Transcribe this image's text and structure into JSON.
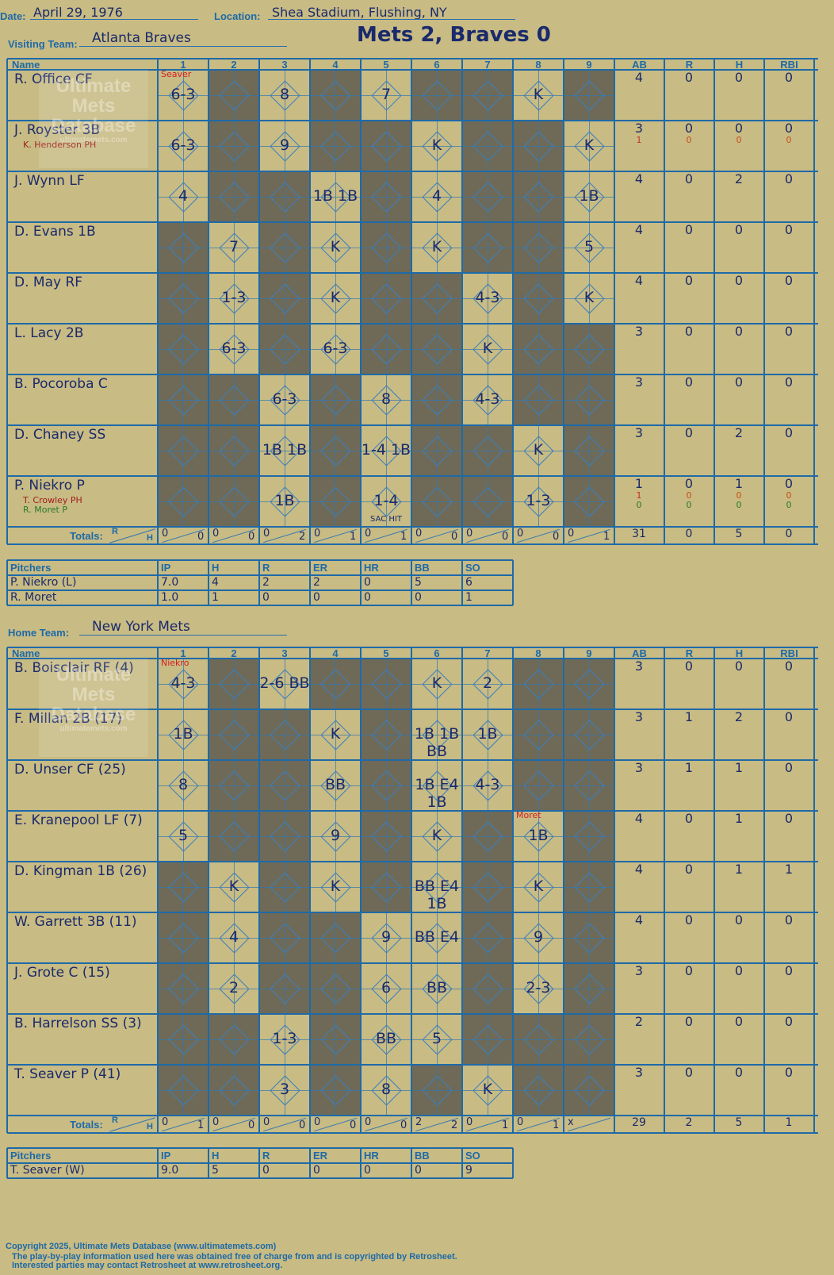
{
  "header": {
    "date_label": "Date:",
    "date": "April 29, 1976",
    "location_label": "Location:",
    "location": "Shea Stadium, Flushing, NY",
    "visiting_label": "Visiting Team:",
    "visiting_team": "Atlanta Braves",
    "title": "Mets 2, Braves 0",
    "home_label": "Home Team:",
    "home_team": "New York Mets"
  },
  "columns": {
    "name": "Name",
    "innings": [
      "1",
      "2",
      "3",
      "4",
      "5",
      "6",
      "7",
      "8",
      "9"
    ],
    "stats": [
      "AB",
      "R",
      "H",
      "RBI"
    ],
    "totals": "Totals:",
    "r": "R",
    "h": "H"
  },
  "watermark": {
    "line1": "Ultimate",
    "line2": "Mets",
    "line3": "Database",
    "line4": "ultimatemets.com"
  },
  "visitors": {
    "pitcher_note": "Seaver",
    "players": [
      {
        "name": "R. Office CF",
        "subs": [],
        "ab": [
          "4"
        ],
        "r": [
          "0"
        ],
        "h": [
          "0"
        ],
        "rbi": [
          "0"
        ],
        "plays": {
          "1": "6-3",
          "3": "8",
          "5": "7",
          "8": "K"
        }
      },
      {
        "name": "J. Royster 3B",
        "subs": [
          {
            "name": "K. Henderson PH",
            "color": "darkred"
          }
        ],
        "ab": [
          "3",
          "1"
        ],
        "r": [
          "0",
          "0"
        ],
        "h": [
          "0",
          "0"
        ],
        "rbi": [
          "0",
          "0"
        ],
        "plays": {
          "1": "6-3",
          "3": "9",
          "6": "K",
          "9": "K"
        }
      },
      {
        "name": "J. Wynn LF",
        "subs": [],
        "ab": [
          "4"
        ],
        "r": [
          "0"
        ],
        "h": [
          "2"
        ],
        "rbi": [
          "0"
        ],
        "plays": {
          "1": "4",
          "4": "1B 1B",
          "6": "4",
          "9": "1B"
        }
      },
      {
        "name": "D. Evans 1B",
        "subs": [],
        "ab": [
          "4"
        ],
        "r": [
          "0"
        ],
        "h": [
          "0"
        ],
        "rbi": [
          "0"
        ],
        "plays": {
          "2": "7",
          "4": "K",
          "6": "K",
          "9": "5"
        }
      },
      {
        "name": "D. May RF",
        "subs": [],
        "ab": [
          "4"
        ],
        "r": [
          "0"
        ],
        "h": [
          "0"
        ],
        "rbi": [
          "0"
        ],
        "plays": {
          "2": "1-3",
          "4": "K",
          "7": "4-3",
          "9": "K"
        }
      },
      {
        "name": "L. Lacy 2B",
        "subs": [],
        "ab": [
          "3"
        ],
        "r": [
          "0"
        ],
        "h": [
          "0"
        ],
        "rbi": [
          "0"
        ],
        "plays": {
          "2": "6-3",
          "4": "6-3",
          "7": "K"
        }
      },
      {
        "name": "B. Pocoroba C",
        "subs": [],
        "ab": [
          "3"
        ],
        "r": [
          "0"
        ],
        "h": [
          "0"
        ],
        "rbi": [
          "0"
        ],
        "plays": {
          "3": "6-3",
          "5": "8",
          "7": "4-3"
        }
      },
      {
        "name": "D. Chaney SS",
        "subs": [],
        "ab": [
          "3"
        ],
        "r": [
          "0"
        ],
        "h": [
          "2"
        ],
        "rbi": [
          "0"
        ],
        "plays": {
          "3": "1B 1B",
          "5": "1-4 1B",
          "8": "K"
        }
      },
      {
        "name": "P. Niekro P",
        "subs": [
          {
            "name": "T. Crowley PH",
            "color": "darkred"
          },
          {
            "name": "R. Moret P",
            "color": "green"
          }
        ],
        "ab": [
          "1",
          "1",
          "0"
        ],
        "r": [
          "0",
          "0",
          "0"
        ],
        "h": [
          "1",
          "0",
          "0"
        ],
        "rbi": [
          "0",
          "0",
          "0"
        ],
        "plays": {
          "3": "1B",
          "5": "1-4",
          "8": "1-3"
        },
        "notes": {
          "5": "SAC HIT"
        }
      }
    ],
    "totals": {
      "innings": [
        [
          "0",
          "0"
        ],
        [
          "0",
          "0"
        ],
        [
          "0",
          "2"
        ],
        [
          "0",
          "1"
        ],
        [
          "0",
          "1"
        ],
        [
          "0",
          "0"
        ],
        [
          "0",
          "0"
        ],
        [
          "0",
          "0"
        ],
        [
          "0",
          "1"
        ]
      ],
      "ab": "31",
      "r": "0",
      "h": "5",
      "rbi": "0"
    },
    "pitching": {
      "header": [
        "Pitchers",
        "IP",
        "H",
        "R",
        "ER",
        "HR",
        "BB",
        "SO"
      ],
      "rows": [
        [
          "P. Niekro (L)",
          "7.0",
          "4",
          "2",
          "2",
          "0",
          "5",
          "6"
        ],
        [
          "R. Moret",
          "1.0",
          "1",
          "0",
          "0",
          "0",
          "0",
          "1"
        ]
      ]
    }
  },
  "home": {
    "pitcher_note": "Niekro",
    "relief_note": "Moret",
    "players": [
      {
        "name": "B. Boisclair RF (4)",
        "ab": [
          "3"
        ],
        "r": [
          "0"
        ],
        "h": [
          "0"
        ],
        "rbi": [
          "0"
        ],
        "plays": {
          "1": "4-3",
          "3": "2-6 BB",
          "6": "K",
          "7": "2"
        }
      },
      {
        "name": "F. Millan 2B (17)",
        "ab": [
          "3"
        ],
        "r": [
          "1"
        ],
        "h": [
          "2"
        ],
        "rbi": [
          "0"
        ],
        "plays": {
          "1": "1B",
          "4": "K",
          "6": "1B 1B BB",
          "7": "1B"
        }
      },
      {
        "name": "D. Unser CF (25)",
        "ab": [
          "3"
        ],
        "r": [
          "1"
        ],
        "h": [
          "1"
        ],
        "rbi": [
          "0"
        ],
        "plays": {
          "1": "8",
          "4": "BB",
          "6": "1B E4 1B",
          "7": "4-3"
        }
      },
      {
        "name": "E. Kranepool LF (7)",
        "ab": [
          "4"
        ],
        "r": [
          "0"
        ],
        "h": [
          "1"
        ],
        "rbi": [
          "0"
        ],
        "plays": {
          "1": "5",
          "4": "9",
          "6": "K",
          "8": "1B"
        }
      },
      {
        "name": "D. Kingman 1B (26)",
        "ab": [
          "4"
        ],
        "r": [
          "0"
        ],
        "h": [
          "1"
        ],
        "rbi": [
          "1"
        ],
        "plays": {
          "2": "K",
          "4": "K",
          "6": "BB E4 1B",
          "8": "K"
        }
      },
      {
        "name": "W. Garrett 3B (11)",
        "ab": [
          "4"
        ],
        "r": [
          "0"
        ],
        "h": [
          "0"
        ],
        "rbi": [
          "0"
        ],
        "plays": {
          "2": "4",
          "5": "9",
          "6": "BB E4",
          "8": "9"
        }
      },
      {
        "name": "J. Grote C (15)",
        "ab": [
          "3"
        ],
        "r": [
          "0"
        ],
        "h": [
          "0"
        ],
        "rbi": [
          "0"
        ],
        "plays": {
          "2": "2",
          "5": "6",
          "6": "BB",
          "8": "2-3"
        }
      },
      {
        "name": "B. Harrelson SS (3)",
        "ab": [
          "2"
        ],
        "r": [
          "0"
        ],
        "h": [
          "0"
        ],
        "rbi": [
          "0"
        ],
        "plays": {
          "3": "1-3",
          "5": "BB",
          "6": "5"
        }
      },
      {
        "name": "T. Seaver P (41)",
        "ab": [
          "3"
        ],
        "r": [
          "0"
        ],
        "h": [
          "0"
        ],
        "rbi": [
          "0"
        ],
        "plays": {
          "3": "3",
          "5": "8",
          "7": "K"
        }
      }
    ],
    "totals": {
      "innings": [
        [
          "0",
          "1"
        ],
        [
          "0",
          "0"
        ],
        [
          "0",
          "0"
        ],
        [
          "0",
          "0"
        ],
        [
          "0",
          "0"
        ],
        [
          "2",
          "2"
        ],
        [
          "0",
          "1"
        ],
        [
          "0",
          "1"
        ],
        [
          "x",
          ""
        ]
      ],
      "ab": "29",
      "r": "2",
      "h": "5",
      "rbi": "1"
    },
    "pitching": {
      "header": [
        "Pitchers",
        "IP",
        "H",
        "R",
        "ER",
        "HR",
        "BB",
        "SO"
      ],
      "rows": [
        [
          "T. Seaver (W)",
          "9.0",
          "5",
          "0",
          "0",
          "0",
          "0",
          "9"
        ]
      ]
    }
  },
  "footer": {
    "line1": "Copyright 2025, Ultimate Mets Database (www.ultimatemets.com)",
    "line2": "The play-by-play information used here was obtained free of charge from and is copyrighted by Retrosheet.",
    "line3": "Interested parties may contact Retrosheet at www.retrosheet.org."
  }
}
